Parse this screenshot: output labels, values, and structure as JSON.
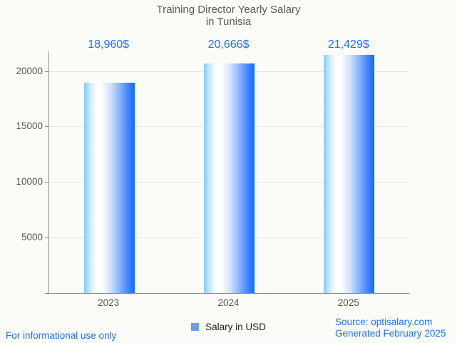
{
  "title": {
    "line1": "Training Director Yearly Salary",
    "line2": "in Tunisia"
  },
  "chart_data": {
    "type": "bar",
    "title": "Training Director Yearly Salary in Tunisia",
    "categories": [
      "2023",
      "2024",
      "2025"
    ],
    "series": [
      {
        "name": "Salary in USD",
        "values": [
          18960,
          20666,
          21429
        ]
      }
    ],
    "value_labels": [
      "18,960$",
      "20,666$",
      "21,429$"
    ],
    "xlabel": "",
    "ylabel": "",
    "y_ticks": [
      5000,
      10000,
      15000,
      20000
    ],
    "ylim": [
      0,
      21770
    ],
    "grid": true,
    "legend_position": "bottom"
  },
  "legend": {
    "label": "Salary in USD"
  },
  "footer": {
    "left": "For informational use only",
    "source": "Source: optisalary.com",
    "generated": "Generated February 2025"
  },
  "colors": {
    "background": "#fbfbf7",
    "title": "#595959",
    "axis": "#8d8d8d",
    "grid": "#e7e7e3",
    "tick_label": "#555555",
    "value_label": "#1f6ff0",
    "footer_text": "#1f6ff0",
    "bar_gradient_left": "#7ecffb",
    "bar_gradient_mid": "#ffffff",
    "bar_gradient_right": "#0d6dfe",
    "legend_marker": "#6b9cf0"
  }
}
